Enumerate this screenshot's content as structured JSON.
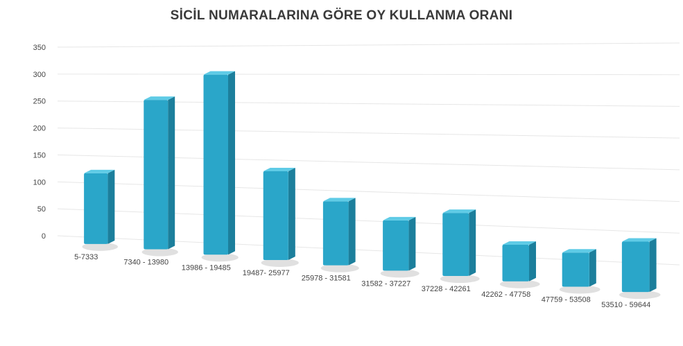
{
  "chart_data": {
    "type": "bar",
    "title": "SİCİL NUMARALARINA GÖRE OY KULLANMA ORANI",
    "categories": [
      "5-7333",
      "7340 - 13980",
      "13986 - 19485",
      "19487- 25977",
      "25978 - 31581",
      "31582 - 37227",
      "37228 - 42261",
      "42262 - 47758",
      "47759 - 53508",
      "53510 - 59644"
    ],
    "values": [
      130,
      270,
      320,
      155,
      110,
      85,
      105,
      60,
      55,
      80
    ],
    "y_ticks": [
      0,
      50,
      100,
      150,
      200,
      250,
      300,
      350
    ],
    "ylim": [
      0,
      350
    ],
    "grid": true,
    "style": "3d-column",
    "colors": {
      "bar_front": "#2aa6c9",
      "bar_side": "#1c7f9c",
      "bar_top": "#5fcbe6",
      "grid": "#e6e6e6",
      "text": "#444444"
    }
  }
}
